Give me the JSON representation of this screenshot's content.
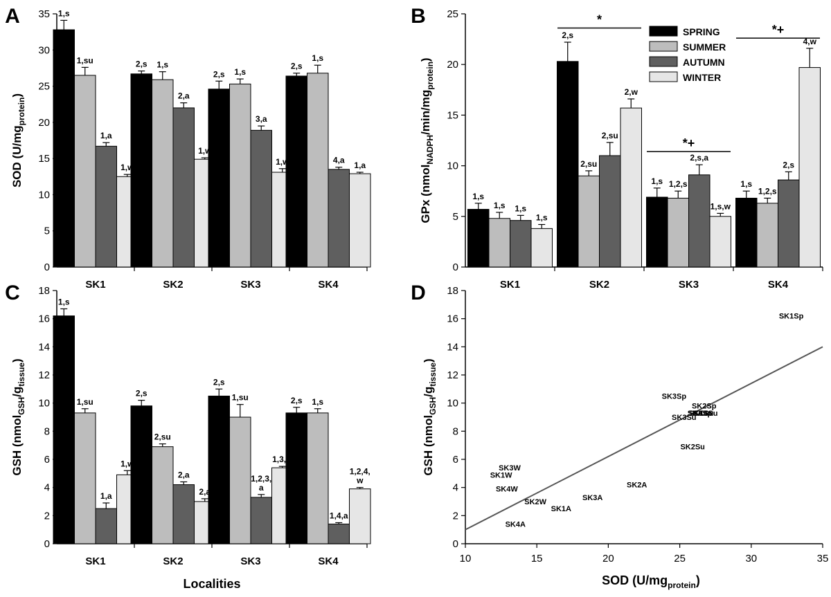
{
  "series_names": [
    "SPRING",
    "SUMMER",
    "AUTUMN",
    "WINTER"
  ],
  "colors": {
    "SPRING": "#000000",
    "SUMMER": "#bdbdbd",
    "AUTUMN": "#5f5f5f",
    "WINTER": "#e6e6e6",
    "regression": "#555555"
  },
  "chart_data": [
    {
      "panel": "A",
      "type": "bar",
      "ylabel": "SOD (U/mg",
      "ylabel_sub": "protein",
      "ylabel_end": ")",
      "ylim": [
        0,
        35
      ],
      "yticks": [
        0,
        5,
        10,
        15,
        20,
        25,
        30,
        35
      ],
      "categories": [
        "SK1",
        "SK2",
        "SK3",
        "SK4"
      ],
      "series": [
        {
          "name": "SPRING",
          "values": [
            32.8,
            26.7,
            24.6,
            26.4
          ],
          "errors": [
            1.3,
            0.4,
            1.1,
            0.4
          ],
          "labels": [
            "1,s",
            "2,s",
            "2,s",
            "2,s"
          ]
        },
        {
          "name": "SUMMER",
          "values": [
            26.5,
            25.9,
            25.3,
            26.8
          ],
          "errors": [
            1.1,
            1.1,
            0.7,
            1.1
          ],
          "labels": [
            "1,su",
            "1,s",
            "1,s",
            "1,s"
          ]
        },
        {
          "name": "AUTUMN",
          "values": [
            16.7,
            22.0,
            18.9,
            13.5
          ],
          "errors": [
            0.5,
            0.7,
            0.6,
            0.3
          ],
          "labels": [
            "1,a",
            "2,a",
            "3,a",
            "4,a"
          ]
        },
        {
          "name": "WINTER",
          "values": [
            12.5,
            14.9,
            13.1,
            12.9
          ],
          "errors": [
            0.3,
            0.2,
            0.5,
            0.2
          ],
          "labels": [
            "1,w",
            "1,w",
            "1,w",
            "1,a"
          ]
        }
      ],
      "significance": []
    },
    {
      "panel": "B",
      "type": "bar",
      "ylabel": "GPx (nmol",
      "ylabel_sub": "NADPH",
      "ylabel_mid": "/min/mg",
      "ylabel_sub2": "protein",
      "ylabel_end": ")",
      "ylim": [
        0,
        25
      ],
      "yticks": [
        0,
        5,
        10,
        15,
        20,
        25
      ],
      "categories": [
        "SK1",
        "SK2",
        "SK3",
        "SK4"
      ],
      "series": [
        {
          "name": "SPRING",
          "values": [
            5.7,
            20.3,
            6.9,
            6.8
          ],
          "errors": [
            0.6,
            1.9,
            0.9,
            0.7
          ],
          "labels": [
            "1,s",
            "2,s",
            "1,s",
            "1,s"
          ]
        },
        {
          "name": "SUMMER",
          "values": [
            4.8,
            9.0,
            6.8,
            6.3
          ],
          "errors": [
            0.6,
            0.5,
            0.7,
            0.5
          ],
          "labels": [
            "1,s",
            "2,su",
            "1,2,s",
            "1,2,s"
          ]
        },
        {
          "name": "AUTUMN",
          "values": [
            4.6,
            11.0,
            9.1,
            8.6
          ],
          "errors": [
            0.5,
            1.3,
            1.0,
            0.8
          ],
          "labels": [
            "1,s",
            "2,su",
            "2,s,a",
            "2,s"
          ]
        },
        {
          "name": "WINTER",
          "values": [
            3.8,
            15.7,
            5.0,
            19.7
          ],
          "errors": [
            0.4,
            0.9,
            0.3,
            1.9
          ],
          "labels": [
            "1,s",
            "2,w",
            "1,s,w",
            "4,w"
          ]
        }
      ],
      "significance": [
        {
          "symbol": "*",
          "from_category": 1,
          "to_category": 1,
          "y": 23.6
        },
        {
          "symbol": "*+",
          "from_category": 2,
          "to_category": 2,
          "y": 11.4
        },
        {
          "symbol": "*+",
          "from_category": 3,
          "to_category": 3,
          "y": 22.6
        }
      ]
    },
    {
      "panel": "C",
      "type": "bar",
      "ylabel": "GSH (nmol",
      "ylabel_sub": "GSH",
      "ylabel_mid": "/g",
      "ylabel_sub2": "tissue",
      "ylabel_end": ")",
      "xlabel": "Localities",
      "ylim": [
        0,
        18
      ],
      "yticks": [
        0,
        2,
        4,
        6,
        8,
        10,
        12,
        14,
        16,
        18
      ],
      "categories": [
        "SK1",
        "SK2",
        "SK3",
        "SK4"
      ],
      "series": [
        {
          "name": "SPRING",
          "values": [
            16.2,
            9.8,
            10.5,
            9.3
          ],
          "errors": [
            0.5,
            0.4,
            0.5,
            0.4
          ],
          "labels": [
            "1,s",
            "2,s",
            "2,s",
            "2,s"
          ]
        },
        {
          "name": "SUMMER",
          "values": [
            9.3,
            6.9,
            9.0,
            9.3
          ],
          "errors": [
            0.3,
            0.2,
            0.9,
            0.3
          ],
          "labels": [
            "1,su",
            "2,su",
            "1,su",
            "1,s"
          ]
        },
        {
          "name": "AUTUMN",
          "values": [
            2.5,
            4.2,
            3.3,
            1.4
          ],
          "errors": [
            0.4,
            0.2,
            0.2,
            0.1
          ],
          "labels": [
            "1,a",
            "2,a",
            "1,2,3,\na",
            "1,4,a"
          ]
        },
        {
          "name": "WINTER",
          "values": [
            4.9,
            3.0,
            5.4,
            3.9
          ],
          "errors": [
            0.3,
            0.2,
            0.1,
            0.1
          ],
          "labels": [
            "1,w",
            "2,a",
            "1,3,w",
            "1,2,4,\nw"
          ]
        }
      ],
      "significance": []
    },
    {
      "panel": "D",
      "type": "scatter",
      "xlabel": "SOD (U/mg",
      "xlabel_sub": "protein",
      "xlabel_end": ")",
      "ylabel": "GSH (nmol",
      "ylabel_sub": "GSH",
      "ylabel_mid": "/g",
      "ylabel_sub2": "tissue",
      "ylabel_end": ")",
      "xlim": [
        10,
        35
      ],
      "ylim": [
        0,
        18
      ],
      "xticks": [
        10,
        15,
        20,
        25,
        30,
        35
      ],
      "yticks": [
        0,
        2,
        4,
        6,
        8,
        10,
        12,
        14,
        16,
        18
      ],
      "points": [
        {
          "label": "SK1Sp",
          "x": 32.8,
          "y": 16.2
        },
        {
          "label": "SK3Sp",
          "x": 24.6,
          "y": 10.5
        },
        {
          "label": "SK2Sp",
          "x": 26.7,
          "y": 9.8
        },
        {
          "label": "SK4Sp",
          "x": 26.4,
          "y": 9.3
        },
        {
          "label": "SK1Su",
          "x": 26.5,
          "y": 9.3
        },
        {
          "label": "SK4Su",
          "x": 26.8,
          "y": 9.3
        },
        {
          "label": "SK3Su",
          "x": 25.3,
          "y": 9.0
        },
        {
          "label": "SK2Su",
          "x": 25.9,
          "y": 6.9
        },
        {
          "label": "SK3W",
          "x": 13.1,
          "y": 5.4
        },
        {
          "label": "SK1W",
          "x": 12.5,
          "y": 4.9
        },
        {
          "label": "SK4W",
          "x": 12.9,
          "y": 3.9
        },
        {
          "label": "SK2A",
          "x": 22.0,
          "y": 4.2
        },
        {
          "label": "SK3A",
          "x": 18.9,
          "y": 3.3
        },
        {
          "label": "SK2W",
          "x": 14.9,
          "y": 3.0
        },
        {
          "label": "SK1A",
          "x": 16.7,
          "y": 2.5
        },
        {
          "label": "SK4A",
          "x": 13.5,
          "y": 1.4
        }
      ],
      "regression": {
        "x1": 10,
        "y1": 1.0,
        "x2": 35,
        "y2": 14.0
      }
    }
  ]
}
